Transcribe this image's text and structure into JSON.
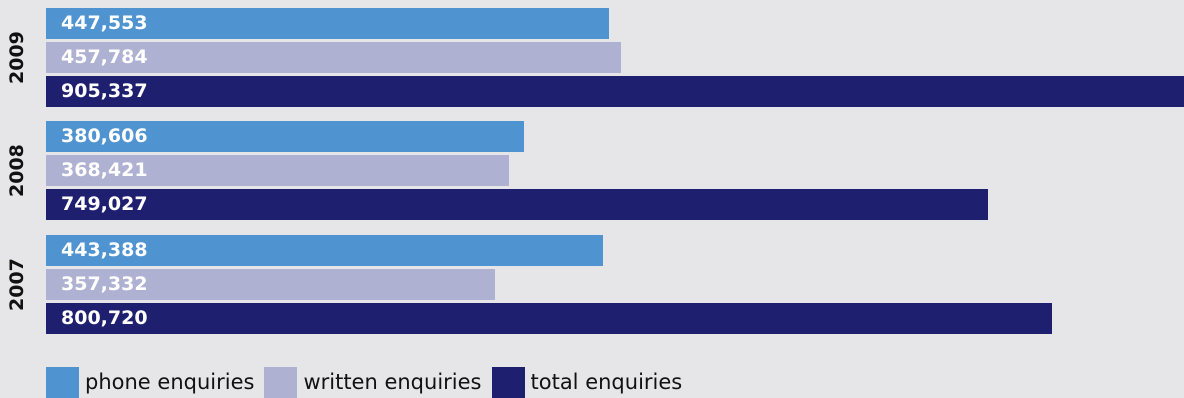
{
  "chart_data": {
    "type": "bar",
    "orientation": "horizontal",
    "categories": [
      "2009",
      "2008",
      "2007"
    ],
    "series": [
      {
        "name": "phone enquiries",
        "values": [
          447553,
          380606,
          443388
        ],
        "labels": [
          "447,553",
          "380,606",
          "443,388"
        ],
        "color": "#4f93d0",
        "label_color": "#ffffff"
      },
      {
        "name": "written enquiries",
        "values": [
          457784,
          368421,
          357332
        ],
        "labels": [
          "457,784",
          "368,421",
          "357,332"
        ],
        "color": "#aeb1d2",
        "label_color": "#ffffff"
      },
      {
        "name": "total enquiries",
        "values": [
          905337,
          749027,
          800720
        ],
        "labels": [
          "905,337",
          "749,027",
          "800,720"
        ],
        "color": "#1f1f6f",
        "label_color": "#ffffff"
      }
    ],
    "title": "",
    "xlabel": "",
    "ylabel": "",
    "grid": false,
    "legend_position": "bottom-left"
  },
  "legend": {
    "items": [
      {
        "label": "phone enquiries",
        "color": "#4f93d0"
      },
      {
        "label": "written enquiries",
        "color": "#aeb1d2"
      },
      {
        "label": "total enquiries",
        "color": "#1f1f6f"
      }
    ]
  }
}
